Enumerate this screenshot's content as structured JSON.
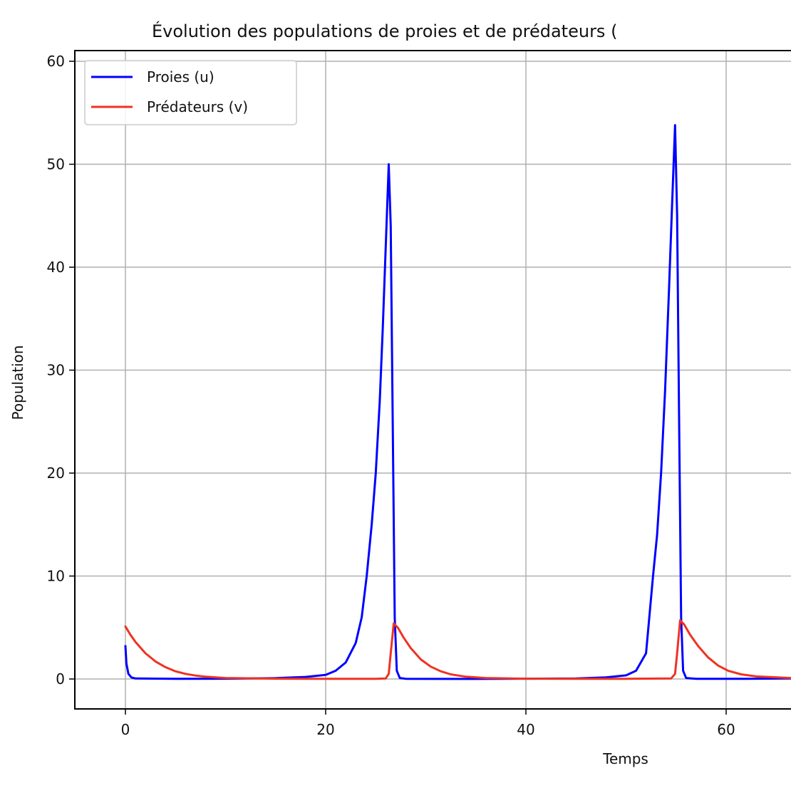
{
  "chart_data": {
    "type": "line",
    "title": "Évolution des populations de proies et de prédateurs (",
    "xlabel": "Temps",
    "ylabel": "Population",
    "xlim": [
      -5.05,
      66.5
    ],
    "ylim": [
      -2.9,
      61.0
    ],
    "xticks": [
      0,
      20,
      40,
      60
    ],
    "yticks": [
      0,
      10,
      20,
      30,
      40,
      50,
      60
    ],
    "grid": true,
    "legend_position": "upper left",
    "series": [
      {
        "name": "Proies (u)",
        "color": "#0000ff",
        "x": [
          0,
          0.1,
          0.3,
          0.6,
          1.0,
          5,
          10,
          15,
          18,
          20,
          21,
          22,
          23,
          23.6,
          24.1,
          24.6,
          25.0,
          25.4,
          25.7,
          26.0,
          26.3,
          26.5,
          26.7,
          26.9,
          27.1,
          27.4,
          28,
          35,
          45,
          48,
          50,
          51,
          52,
          52.7,
          53.1,
          53.5,
          53.9,
          54.3,
          54.6,
          54.9,
          55.1,
          55.3,
          55.5,
          55.7,
          56.0,
          57,
          62,
          66.5
        ],
        "y": [
          3.2,
          1.5,
          0.5,
          0.15,
          0.05,
          0.02,
          0.03,
          0.08,
          0.2,
          0.4,
          0.8,
          1.6,
          3.5,
          6.0,
          10.0,
          15.0,
          20.0,
          27.0,
          34.0,
          42.0,
          50.0,
          44.0,
          25.0,
          6.0,
          0.8,
          0.1,
          0.02,
          0.01,
          0.05,
          0.15,
          0.35,
          0.8,
          2.5,
          10.0,
          14.0,
          20.0,
          28.0,
          38.0,
          46.0,
          53.8,
          45.0,
          25.0,
          6.0,
          0.8,
          0.1,
          0.02,
          0.02,
          0.05
        ]
      },
      {
        "name": "Prédateurs (v)",
        "color": "#ee3322",
        "x": [
          0,
          0.5,
          1,
          2,
          3,
          4,
          5,
          6,
          7,
          8,
          10,
          15,
          20,
          25,
          26.0,
          26.3,
          26.5,
          26.8,
          27.2,
          27.8,
          28.5,
          29.5,
          30.5,
          31.5,
          32.5,
          34,
          36,
          40,
          45,
          50,
          54.5,
          54.9,
          55.1,
          55.4,
          55.8,
          56.4,
          57.2,
          58.2,
          59.2,
          60.2,
          61.5,
          63,
          66.5
        ],
        "y": [
          5.1,
          4.3,
          3.6,
          2.5,
          1.7,
          1.15,
          0.75,
          0.5,
          0.33,
          0.22,
          0.1,
          0.03,
          0.02,
          0.02,
          0.05,
          0.5,
          2.5,
          5.4,
          5.0,
          4.0,
          3.0,
          1.9,
          1.2,
          0.75,
          0.45,
          0.22,
          0.1,
          0.03,
          0.02,
          0.02,
          0.05,
          0.5,
          2.5,
          5.7,
          5.3,
          4.3,
          3.2,
          2.1,
          1.3,
          0.8,
          0.45,
          0.25,
          0.1
        ]
      }
    ]
  },
  "legend": {
    "items": [
      {
        "label": "Proies (u)",
        "color": "#0000ff"
      },
      {
        "label": "Prédateurs (v)",
        "color": "#ee3322"
      }
    ]
  },
  "ytick_labels": [
    "0",
    "10",
    "20",
    "30",
    "40",
    "50",
    "60"
  ],
  "xtick_labels": [
    "0",
    "20",
    "40",
    "60"
  ]
}
